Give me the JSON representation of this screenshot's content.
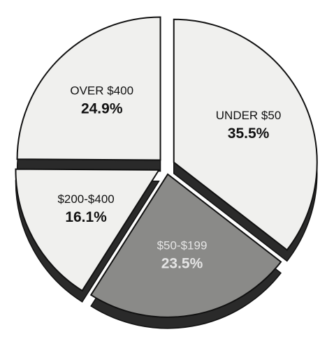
{
  "chart_data": {
    "type": "pie",
    "categories": [
      "UNDER $50",
      "$50-$199",
      "$200-$400",
      "OVER $400"
    ],
    "values": [
      35.5,
      23.5,
      16.1,
      24.9
    ],
    "value_labels": [
      "35.5%",
      "23.5%",
      "16.1%",
      "24.9%"
    ],
    "colors": [
      "#f0f0ee",
      "#8a8a88",
      "#f0f0ee",
      "#f0f0ee"
    ]
  }
}
